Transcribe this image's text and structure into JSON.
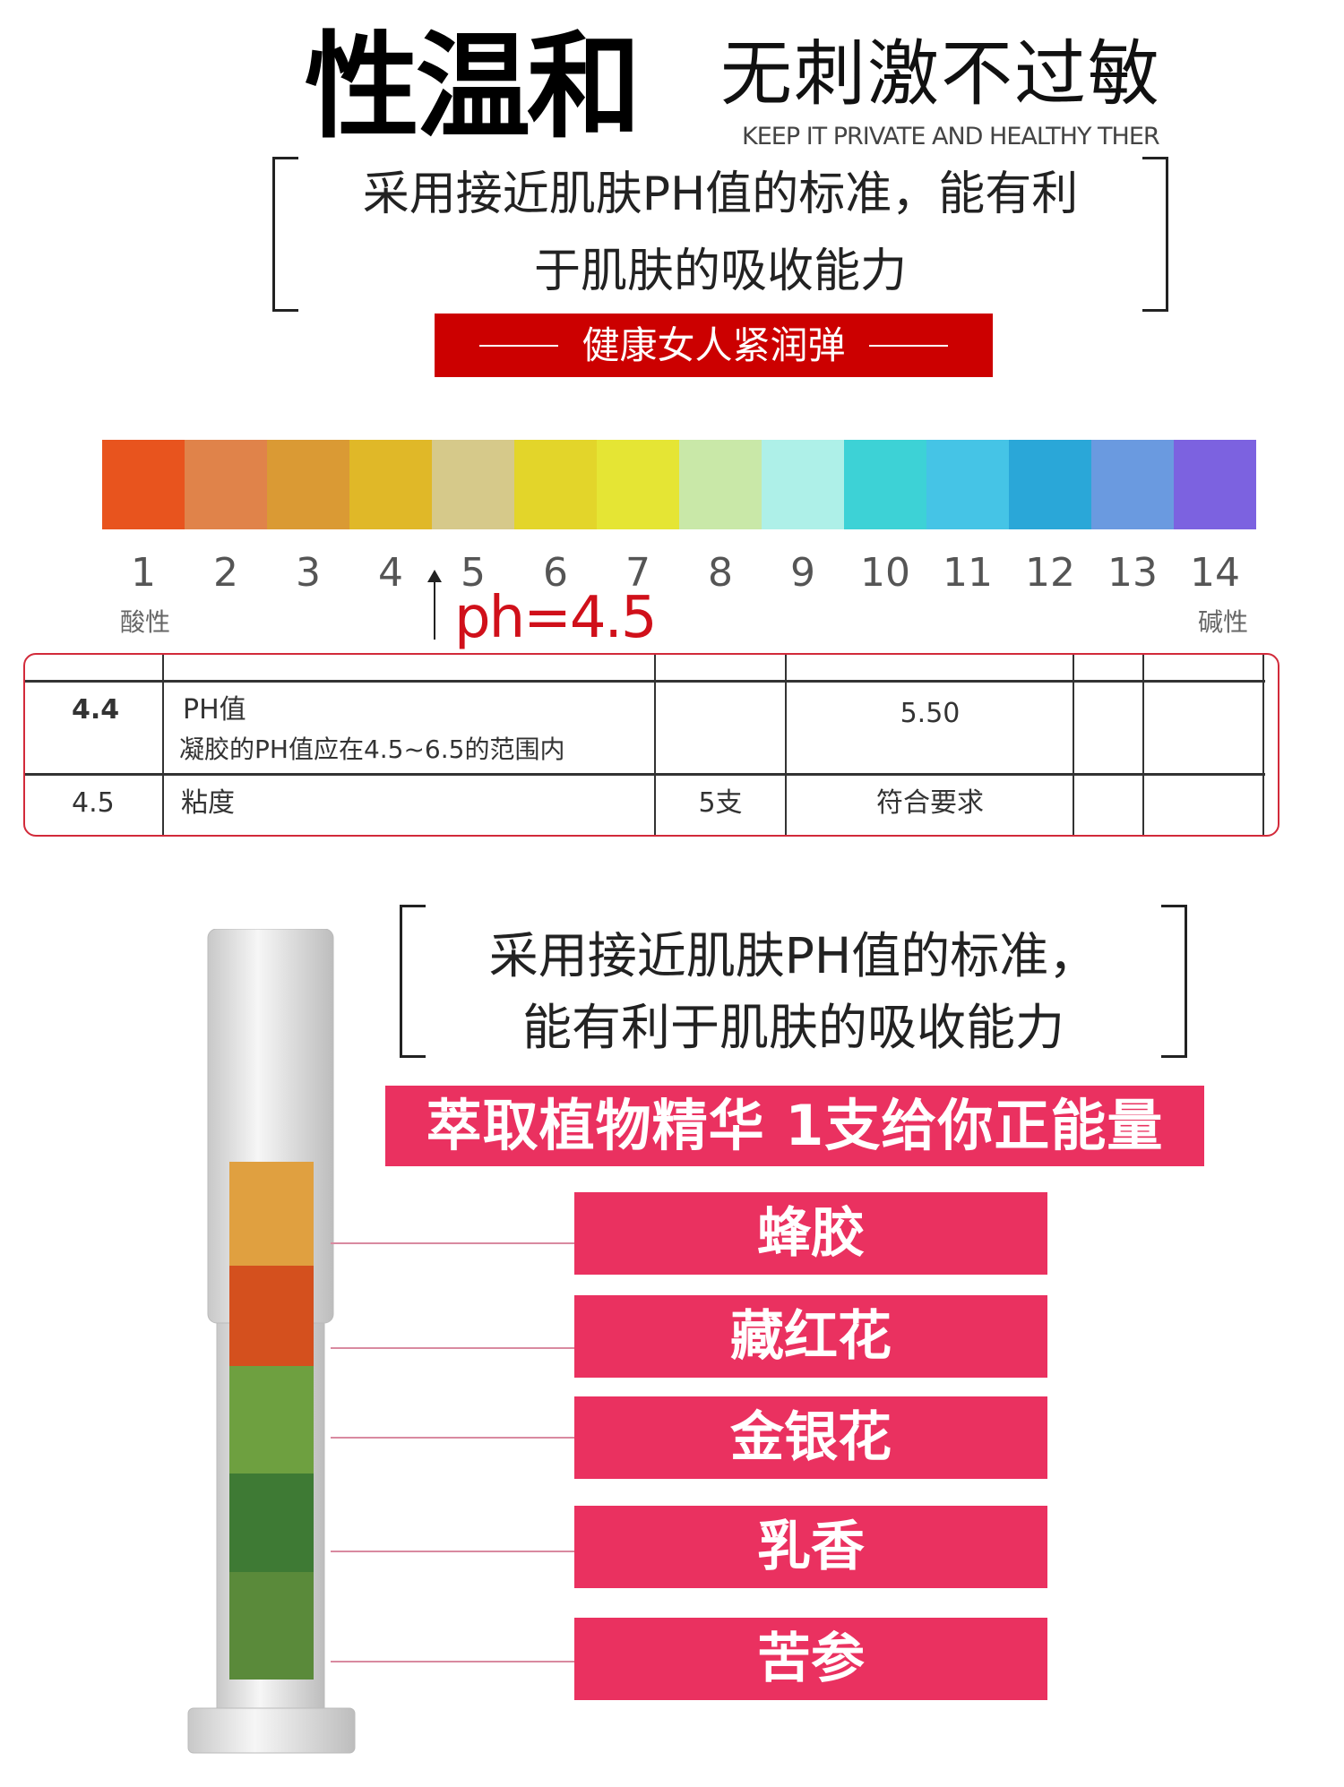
{
  "header": {
    "title": "性温和",
    "subtitle": "无刺激不过敏",
    "english": "KEEP IT PRIVATE AND HEALTHY THER"
  },
  "intro": {
    "line1": "采用接近肌肤PH值的标准，能有利",
    "line2": "于肌肤的吸收能力",
    "banner": "健康女人紧润弹"
  },
  "ph_scale": {
    "colors": [
      "#e8541e",
      "#e0834a",
      "#da9a34",
      "#e0b828",
      "#d6c98a",
      "#e3d52a",
      "#e5e534",
      "#c9e8a8",
      "#aef0e8",
      "#3dd2d6",
      "#45c4e6",
      "#2aa7d8",
      "#6a9ae0",
      "#7c62e0"
    ],
    "numbers": [
      "1",
      "2",
      "3",
      "4",
      "5",
      "6",
      "7",
      "8",
      "9",
      "10",
      "11",
      "12",
      "13",
      "14"
    ],
    "acid_label": "酸性",
    "base_label": "碱性",
    "marker": "ph=4.5",
    "marker_value": 4.5
  },
  "table": {
    "rows": [
      {
        "no": "4.4",
        "item": "PH值",
        "note": "凝胶的PH值应在4.5~6.5的范围内",
        "qty": "",
        "result": "5.50"
      },
      {
        "no": "4.5",
        "item": "粘度",
        "note": "",
        "qty": "5支",
        "result": "符合要求"
      }
    ]
  },
  "product": {
    "line1": "采用接近肌肤PH值的标准，",
    "line2": "能有利于肌肤的吸收能力",
    "banner": "萃取植物精华 1支给你正能量",
    "ingredients": [
      "蜂胶",
      "藏红花",
      "金银花",
      "乳香",
      "苦参"
    ],
    "accent": "#ea3160"
  }
}
